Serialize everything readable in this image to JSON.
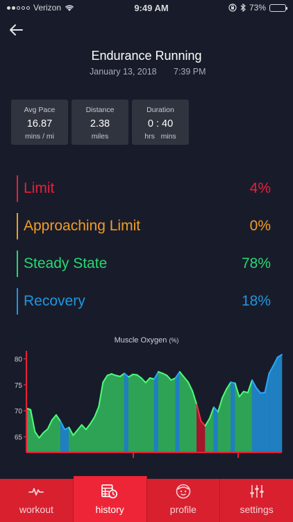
{
  "status_bar": {
    "carrier": "Verizon",
    "time": "9:49 AM",
    "battery": "73%",
    "battery_level": 0.73
  },
  "header": {
    "title": "Endurance Running",
    "date": "January 13, 2018",
    "time": "7:39 PM"
  },
  "stats": [
    {
      "label": "Avg Pace",
      "value": "16.87",
      "unit": "mins / mi"
    },
    {
      "label": "Distance",
      "value": "2.38",
      "unit": "miles"
    },
    {
      "label": "Duration",
      "value": "0 : 40",
      "unit": "hrs   mins"
    }
  ],
  "zones": [
    {
      "name": "Limit",
      "percent": "4%",
      "color": "#e8203a"
    },
    {
      "name": "Approaching Limit",
      "percent": "0%",
      "color": "#f39c26"
    },
    {
      "name": "Steady State",
      "percent": "78%",
      "color": "#27d872"
    },
    {
      "name": "Recovery",
      "percent": "18%",
      "color": "#1f96e0"
    }
  ],
  "chart": {
    "title": "Muscle Oxygen",
    "unit": "(%)"
  },
  "chart_data": {
    "type": "area",
    "title": "Muscle Oxygen (%)",
    "ylim": [
      62,
      81
    ],
    "yticks": [
      65,
      70,
      75,
      80
    ],
    "x": [
      0,
      1,
      2,
      3,
      4,
      5,
      6,
      7,
      8,
      9,
      10,
      11,
      12,
      13,
      14,
      15,
      16,
      17,
      18,
      19,
      20,
      21,
      22,
      23,
      24,
      25,
      26,
      27,
      28,
      29,
      30,
      31,
      32,
      33,
      34,
      35,
      36,
      37,
      38,
      39,
      40,
      41,
      42,
      43,
      44,
      45,
      46,
      47,
      48,
      49,
      50,
      51,
      52,
      53,
      54,
      55,
      56,
      57,
      58,
      59,
      60
    ],
    "values": [
      70.5,
      70.2,
      66,
      64.8,
      65.8,
      66.5,
      68.2,
      69.2,
      68,
      66.4,
      66.8,
      65.3,
      66.3,
      67.3,
      66.4,
      67.5,
      68.8,
      70.8,
      75.5,
      76.8,
      77.1,
      76.8,
      76.6,
      77.2,
      76.5,
      77,
      76.9,
      76.3,
      75.4,
      76.3,
      76.1,
      77.5,
      77.2,
      76.8,
      75.9,
      76.3,
      77.5,
      76.5,
      75.5,
      73.8,
      71.2,
      68,
      67.1,
      68.5,
      70.7,
      69.8,
      72.5,
      74.2,
      75.5,
      75.3,
      72.7,
      73.7,
      73.5,
      75.9,
      74.4,
      73.4,
      73.5,
      77.2,
      78.7,
      80.3,
      80.8
    ],
    "zones": [
      "green",
      "green",
      "green",
      "green",
      "green",
      "green",
      "green",
      "green",
      "blue",
      "blue",
      "green",
      "green",
      "green",
      "green",
      "green",
      "green",
      "green",
      "green",
      "green",
      "green",
      "green",
      "green",
      "green",
      "blue",
      "green",
      "green",
      "green",
      "green",
      "green",
      "green",
      "blue",
      "green",
      "green",
      "green",
      "green",
      "blue",
      "green",
      "green",
      "green",
      "green",
      "red",
      "red",
      "green",
      "green",
      "blue",
      "green",
      "green",
      "green",
      "blue",
      "green",
      "green",
      "green",
      "green",
      "blue",
      "blue",
      "blue",
      "blue",
      "blue",
      "blue",
      "blue",
      "blue"
    ],
    "colors": {
      "green": "#2ea355",
      "blue": "#1f7fc0",
      "red": "#a5162b",
      "line_green": "#4cff7a",
      "line_blue": "#2aa7ff",
      "line_red": "#ff2a44"
    },
    "grid": false
  },
  "tabs": [
    {
      "label": "workout",
      "icon": "heartbeat-icon",
      "active": false
    },
    {
      "label": "history",
      "icon": "history-icon",
      "active": true
    },
    {
      "label": "profile",
      "icon": "face-icon",
      "active": false
    },
    {
      "label": "settings",
      "icon": "sliders-icon",
      "active": false
    }
  ]
}
